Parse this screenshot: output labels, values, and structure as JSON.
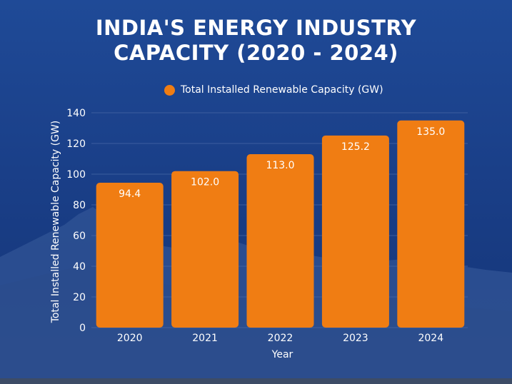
{
  "chart_data": {
    "type": "bar",
    "title_line1": "INDIA'S ENERGY INDUSTRY",
    "title_line2": "CAPACITY (2020 - 2024)",
    "categories": [
      "2020",
      "2021",
      "2022",
      "2023",
      "2024"
    ],
    "series": [
      {
        "name": "Total Installed Renewable Capacity (GW)",
        "values": [
          94.4,
          102.0,
          113.0,
          125.2,
          135.0
        ],
        "labels": [
          "94.4",
          "102.0",
          "113.0",
          "125.2",
          "135.0"
        ]
      }
    ],
    "xlabel": "Year",
    "ylabel": "Total Installed Renewable Capacity (GW)",
    "ylim": [
      0,
      140
    ],
    "yticks": [
      0,
      20,
      40,
      60,
      80,
      100,
      120,
      140
    ],
    "grid": true,
    "legend": "top-center",
    "colors": {
      "bar": "#f07d13",
      "text": "#ffffff",
      "grid": "#4a6aa8"
    }
  }
}
